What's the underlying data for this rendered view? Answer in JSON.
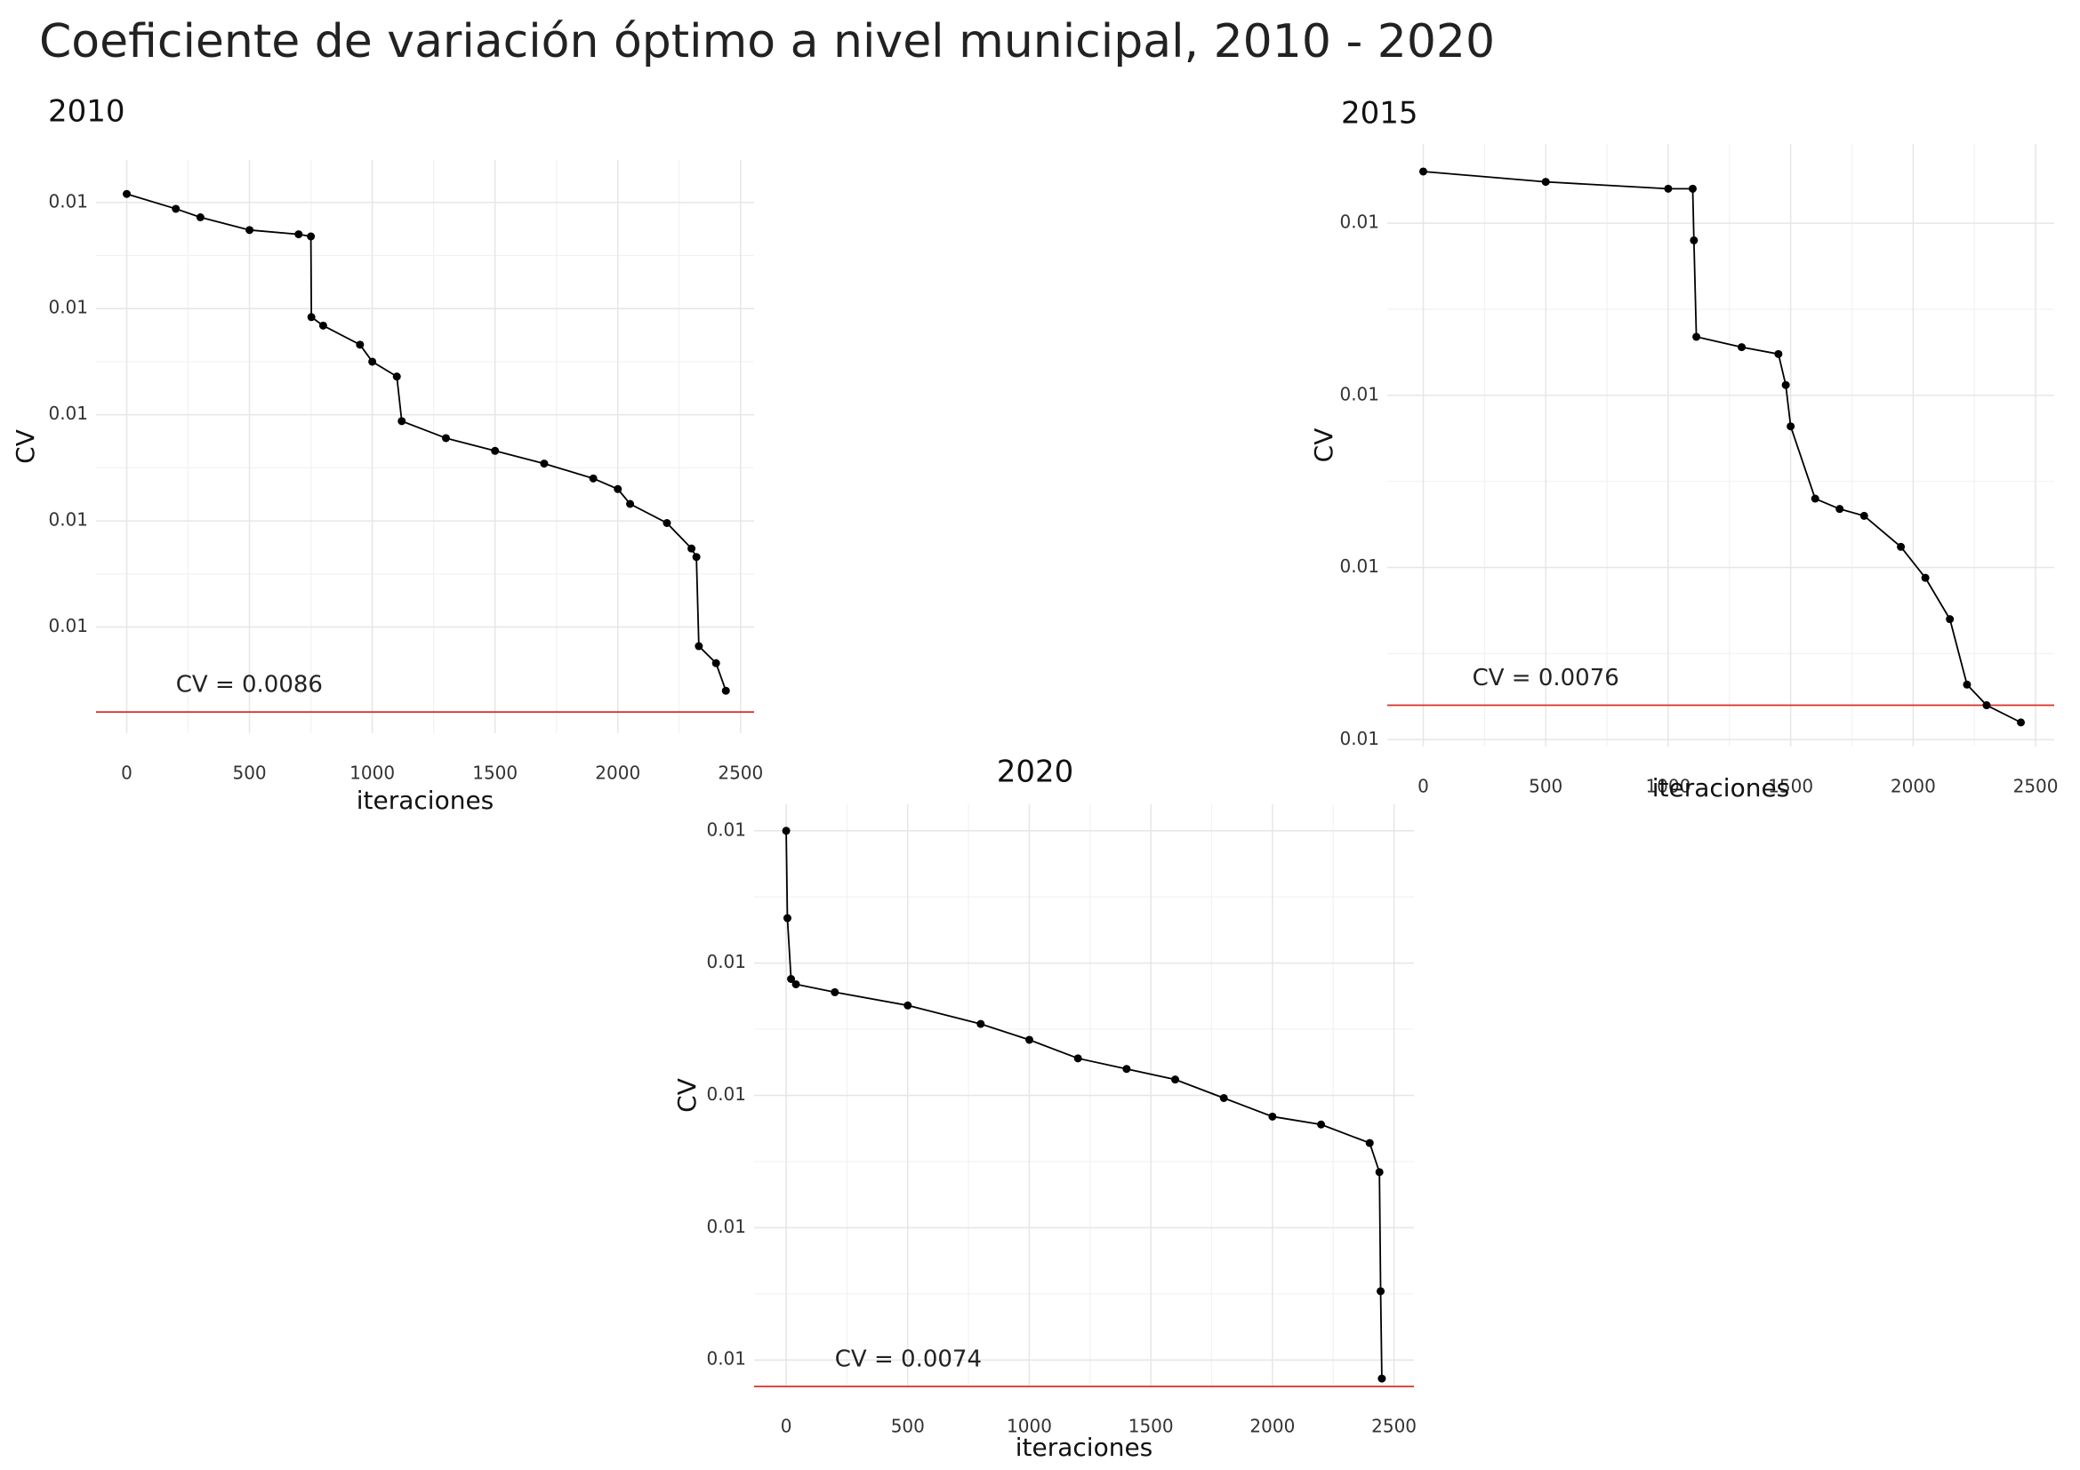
{
  "title": "Coeficiente de variación óptimo a nivel municipal, 2010 - 2020",
  "chart_data": [
    {
      "type": "line",
      "title": "2010",
      "xlabel": "iteraciones",
      "ylabel": "CV",
      "color": "#000000",
      "x": [
        0,
        200,
        300,
        500,
        700,
        750,
        752,
        800,
        950,
        1000,
        1100,
        1120,
        1300,
        1500,
        1700,
        1900,
        2000,
        2050,
        2200,
        2300,
        2320,
        2330,
        2400,
        2440
      ],
      "values": [
        0.01104,
        0.01097,
        0.01093,
        0.01087,
        0.01085,
        0.01084,
        0.01046,
        0.01042,
        0.01033,
        0.01025,
        0.01018,
        0.00997,
        0.00989,
        0.00983,
        0.00977,
        0.0097,
        0.00965,
        0.00958,
        0.00949,
        0.00937,
        0.00933,
        0.00891,
        0.00883,
        0.0087
      ],
      "xlim": [
        -125,
        2555
      ],
      "xticks": [
        0,
        500,
        1000,
        1500,
        2000,
        2500
      ],
      "ylim": [
        0.0085,
        0.0112
      ],
      "yticks": [
        {
          "value": 0.009,
          "label": "0.01"
        },
        {
          "value": 0.0095,
          "label": "0.01"
        },
        {
          "value": 0.01,
          "label": "0.01"
        },
        {
          "value": 0.0105,
          "label": "0.01"
        },
        {
          "value": 0.011,
          "label": "0.01"
        }
      ],
      "hline": {
        "value": 0.0086,
        "label": "CV = 0.0086",
        "x": 200,
        "color": "#d73027"
      },
      "grid": true
    },
    {
      "type": "line",
      "title": "2015",
      "xlabel": "iteraciones",
      "ylabel": "CV",
      "color": "#000000",
      "x": [
        0,
        500,
        1000,
        1100,
        1105,
        1115,
        1300,
        1450,
        1480,
        1500,
        1600,
        1700,
        1800,
        1950,
        2050,
        2150,
        2220,
        2300,
        2440
      ],
      "values": [
        0.00915,
        0.00912,
        0.0091,
        0.0091,
        0.00895,
        0.00867,
        0.00864,
        0.00862,
        0.00853,
        0.00841,
        0.0082,
        0.00817,
        0.00815,
        0.00806,
        0.00797,
        0.00785,
        0.00766,
        0.0076,
        0.00755
      ],
      "xlim": [
        -147,
        2576
      ],
      "xticks": [
        0,
        500,
        1000,
        1500,
        2000,
        2500
      ],
      "ylim": [
        0.00748,
        0.00923
      ],
      "yticks": [
        {
          "value": 0.0075,
          "label": "0.01"
        },
        {
          "value": 0.008,
          "label": "0.01"
        },
        {
          "value": 0.0085,
          "label": "0.01"
        },
        {
          "value": 0.009,
          "label": "0.01"
        }
      ],
      "hline": {
        "value": 0.0076,
        "label": "CV = 0.0076",
        "x": 200,
        "color": "#d73027"
      },
      "grid": true
    },
    {
      "type": "line",
      "title": "2020",
      "xlabel": "iteraciones",
      "ylabel": "CV",
      "color": "#000000",
      "x": [
        0,
        5,
        20,
        40,
        200,
        500,
        800,
        1000,
        1200,
        1400,
        1600,
        1800,
        2000,
        2200,
        2400,
        2440,
        2445,
        2450
      ],
      "values": [
        0.0095,
        0.00917,
        0.00894,
        0.00892,
        0.00889,
        0.00884,
        0.00877,
        0.00871,
        0.00864,
        0.0086,
        0.00856,
        0.00849,
        0.00842,
        0.00839,
        0.00832,
        0.00821,
        0.00776,
        0.00743
      ],
      "xlim": [
        -132,
        2582
      ],
      "xticks": [
        0,
        500,
        1000,
        1500,
        2000,
        2500
      ],
      "ylim": [
        0.0074,
        0.0096
      ],
      "yticks": [
        {
          "value": 0.0075,
          "label": "0.01"
        },
        {
          "value": 0.008,
          "label": "0.01"
        },
        {
          "value": 0.0085,
          "label": "0.01"
        },
        {
          "value": 0.009,
          "label": "0.01"
        },
        {
          "value": 0.0095,
          "label": "0.01"
        }
      ],
      "hline": {
        "value": 0.0074,
        "label": "CV = 0.0074",
        "x": 200,
        "color": "#d73027"
      },
      "grid": true
    }
  ]
}
